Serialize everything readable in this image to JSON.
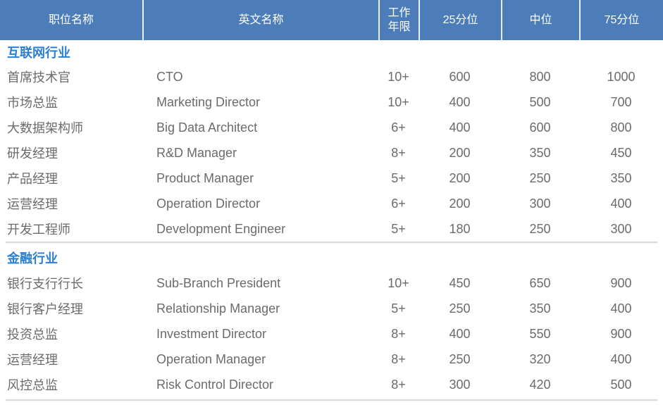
{
  "colors": {
    "header_bg": "#4d7db8",
    "header_text": "#ffffff",
    "header_separator": "#e9eef5",
    "section_title_text": "#2a7fd4",
    "body_text": "#6b6b6b",
    "divider": "#d9d9d9"
  },
  "table": {
    "headers": {
      "position": "职位名称",
      "english": "英文名称",
      "years": "工作年限",
      "p25": "25分位",
      "median": "中位",
      "p75": "75分位"
    },
    "sections": [
      {
        "title": "互联网行业",
        "rows": [
          {
            "position": "首席技术官",
            "english": "CTO",
            "years": "10+",
            "p25": "600",
            "median": "800",
            "p75": "1000"
          },
          {
            "position": "市场总监",
            "english": "Marketing Director",
            "years": "10+",
            "p25": "400",
            "median": "500",
            "p75": "700"
          },
          {
            "position": "大数据架构师",
            "english": "Big Data Architect",
            "years": "6+",
            "p25": "400",
            "median": "600",
            "p75": "800"
          },
          {
            "position": "研发经理",
            "english": "R&D Manager",
            "years": "8+",
            "p25": "200",
            "median": "350",
            "p75": "450"
          },
          {
            "position": "产品经理",
            "english": "Product Manager",
            "years": "5+",
            "p25": "200",
            "median": "250",
            "p75": "350"
          },
          {
            "position": "运营经理",
            "english": "Operation Director",
            "years": "6+",
            "p25": "200",
            "median": "300",
            "p75": "400"
          },
          {
            "position": "开发工程师",
            "english": "Development Engineer",
            "years": "5+",
            "p25": "180",
            "median": "250",
            "p75": "300"
          }
        ]
      },
      {
        "title": "金融行业",
        "rows": [
          {
            "position": "银行支行行长",
            "english": "Sub-Branch President",
            "years": "10+",
            "p25": "450",
            "median": "650",
            "p75": "900"
          },
          {
            "position": "银行客户经理",
            "english": "Relationship Manager",
            "years": "5+",
            "p25": "250",
            "median": "350",
            "p75": "400"
          },
          {
            "position": "投资总监",
            "english": "Investment Director",
            "years": "8+",
            "p25": "400",
            "median": "550",
            "p75": "900"
          },
          {
            "position": "运营经理",
            "english": "Operation Manager",
            "years": "8+",
            "p25": "250",
            "median": "320",
            "p75": "400"
          },
          {
            "position": "风控总监",
            "english": "Risk Control Director",
            "years": "8+",
            "p25": "300",
            "median": "420",
            "p75": "500"
          }
        ]
      }
    ]
  }
}
